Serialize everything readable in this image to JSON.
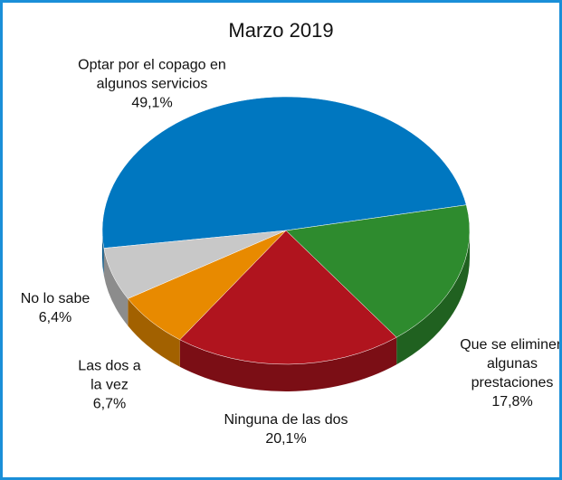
{
  "chart_data": {
    "type": "pie",
    "title": "Marzo 2019",
    "categories": [
      "Optar por el copago en algunos servicios",
      "Que se eliminen algunas prestaciones",
      "Ninguna de las dos",
      "Las dos a la vez",
      "No lo sabe"
    ],
    "values": [
      49.1,
      17.8,
      20.1,
      6.7,
      6.4
    ],
    "value_labels": [
      "49,1%",
      "17,8%",
      "20,1%",
      "6,7%",
      "6,4%"
    ],
    "colors": [
      "#0077c0",
      "#2e8b2e",
      "#b0141e",
      "#e88a00",
      "#c8c8c8"
    ]
  }
}
